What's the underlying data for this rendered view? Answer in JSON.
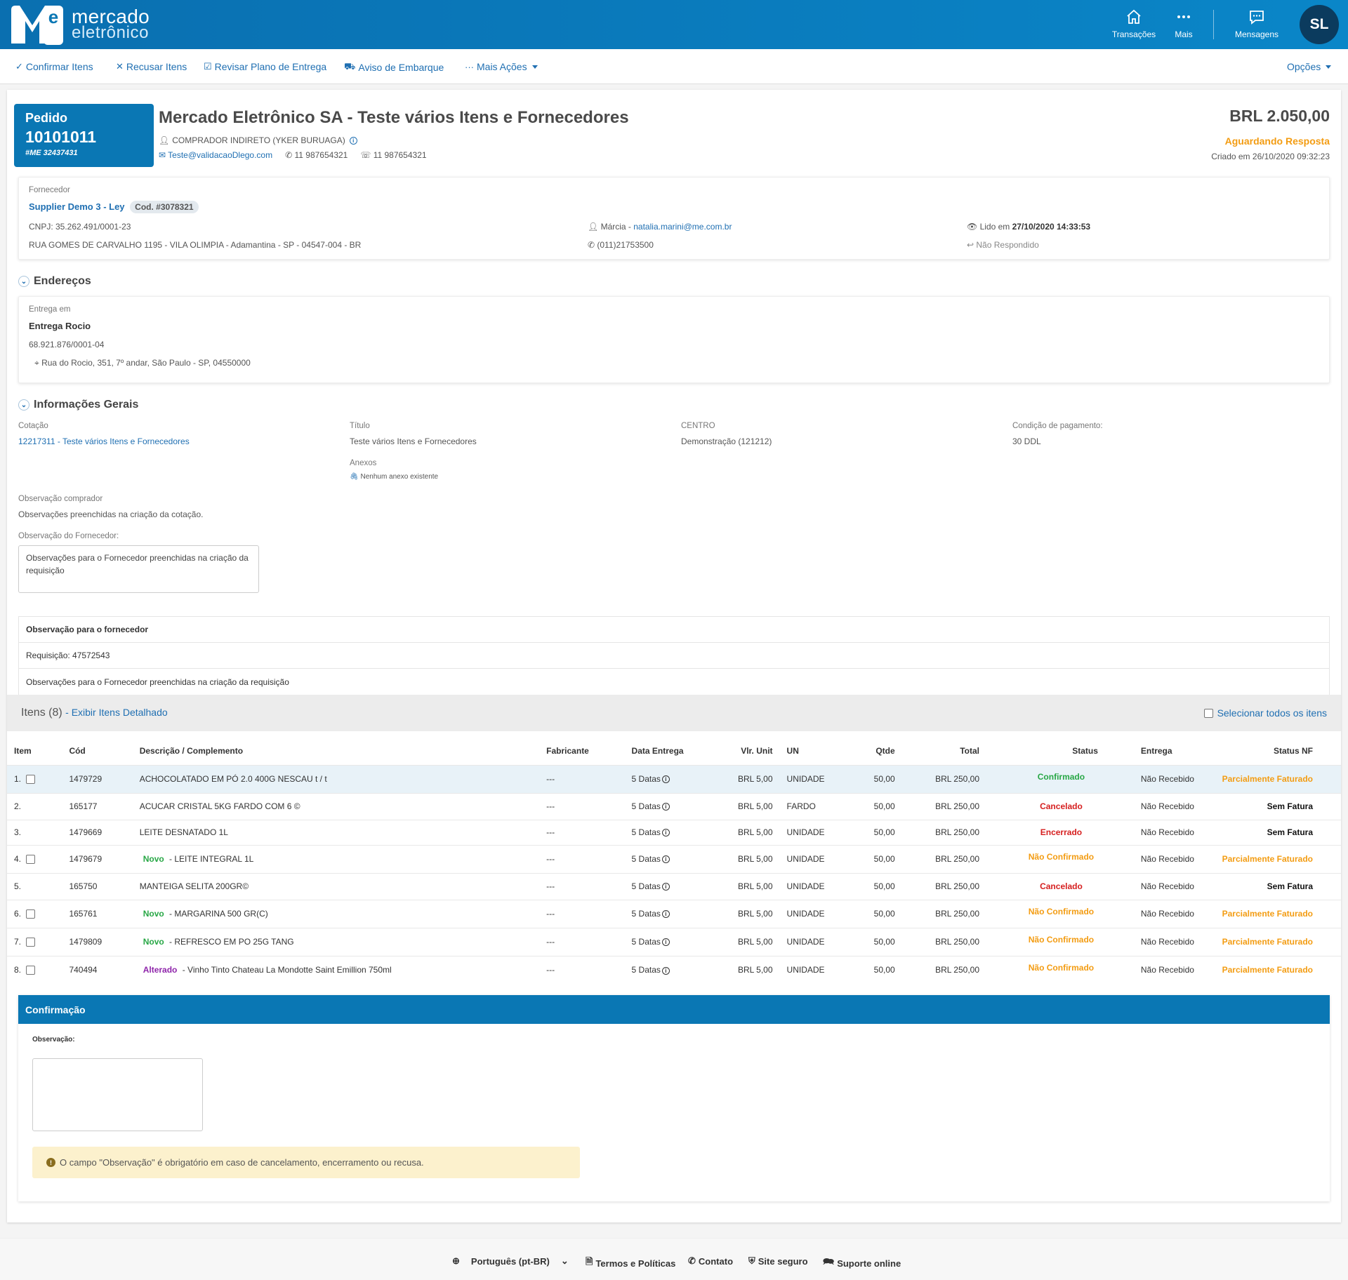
{
  "header": {
    "brand_line1": "mercado",
    "brand_line2": "eletrônico",
    "nav": [
      {
        "label": "Transações",
        "icon": "home-icon"
      },
      {
        "label": "Mais",
        "icon": "more-icon"
      },
      {
        "label": "Mensagens",
        "icon": "messages-icon"
      }
    ],
    "avatar_initials": "SL",
    "colors": {
      "brand": "#0a77b4",
      "avatar": "#0b3b5e"
    }
  },
  "toolbar": {
    "confirm": "Confirmar Itens",
    "refuse": "Recusar Itens",
    "revise": "Revisar Plano de Entrega",
    "shipping": "Aviso de Embarque",
    "more": "Mais Ações",
    "options": "Opções"
  },
  "order": {
    "label": "Pedido",
    "number": "10101011",
    "me_code": "#ME 32437431",
    "title": "Mercado Eletrônico SA - Teste vários Itens e Fornecedores",
    "buyer": "COMPRADOR INDIRETO (YKER BURUAGA)",
    "email": "Teste@validacaoDlego.com",
    "phone": "11 987654321",
    "fax": "11 987654321",
    "amount": "BRL 2.050,00",
    "status": "Aguardando Resposta",
    "created": "Criado em 26/10/2020 09:32:23"
  },
  "supplier": {
    "label": "Fornecedor",
    "name": "Supplier Demo 3 - Ley",
    "code": "Cod. #3078321",
    "cnpj": "CNPJ: 35.262.491/0001-23",
    "address": "RUA GOMES DE CARVALHO 1195 - VILA OLIMPIA - Adamantina - SP - 04547-004 - BR",
    "contact_name": "Márcia - ",
    "contact_email": "natalia.marini@me.com.br",
    "contact_phone": "(011)21753500",
    "read_prefix": "Lido em ",
    "read_date": "27/10/2020 14:33:53",
    "reply_status": "Não Respondido"
  },
  "addresses": {
    "heading": "Endereços",
    "label": "Entrega em",
    "name": "Entrega Rocio",
    "cnpj": "68.921.876/0001-04",
    "street": "Rua do Rocio, 351, 7º andar, São Paulo - SP, 04550000"
  },
  "general": {
    "heading": "Informações Gerais",
    "quote_label": "Cotação",
    "quote_value": "12217311 - Teste vários Itens e Fornecedores",
    "title_label": "Título",
    "title_value": "Teste vários Itens e Fornecedores",
    "center_label": "CENTRO",
    "center_value": "Demonstração (121212)",
    "payment_label": "Condição de pagamento:",
    "payment_value": "30 DDL",
    "attach_label": "Anexos",
    "attach_value": "Nenhum anexo existente",
    "buyer_obs_label": "Observação comprador",
    "buyer_obs_value": "Observações preenchidas na criação da cotação.",
    "supplier_obs_label": "Observação do Fornecedor:",
    "supplier_obs_value": "Observações para o Fornecedor preenchidas na criação da requisição"
  },
  "obs_table": {
    "header": "Observação para o fornecedor",
    "rows": [
      "Requisição: 47572543",
      "Observações para o Fornecedor preenchidas na criação da requisição"
    ]
  },
  "items_section": {
    "title": "Itens (8)",
    "detail_link": "- Exibir Itens Detalhado",
    "select_all": "Selecionar todos os itens",
    "columns": [
      "Item",
      "Cód",
      "Descrição / Complemento",
      "Fabricante",
      "Data Entrega",
      "Vlr. Unit",
      "UN",
      "Qtde",
      "Total",
      "Status",
      "Entrega",
      "Status NF"
    ],
    "rows": [
      {
        "n": "1.",
        "cb": true,
        "cod": "1479729",
        "tag": "",
        "desc": "ACHOCOLATADO EM PÓ 2.0 400G NESCAU t / t",
        "fab": "---",
        "data": "5 Datas",
        "vlr": "BRL 5,00",
        "un": "UNIDADE",
        "qtde": "50,00",
        "total": "BRL 250,00",
        "status": "Confirmado",
        "entrega": "Não Recebido",
        "nf": "Parcialmente Faturado"
      },
      {
        "n": "2.",
        "cb": false,
        "cod": "165177",
        "tag": "",
        "desc": "ACUCAR CRISTAL 5KG FARDO COM 6 ©",
        "fab": "---",
        "data": "5 Datas",
        "vlr": "BRL 5,00",
        "un": "FARDO",
        "qtde": "50,00",
        "total": "BRL 250,00",
        "status": "Cancelado",
        "entrega": "Não Recebido",
        "nf": "Sem Fatura"
      },
      {
        "n": "3.",
        "cb": false,
        "cod": "1479669",
        "tag": "",
        "desc": "LEITE DESNATADO 1L",
        "fab": "---",
        "data": "5 Datas",
        "vlr": "BRL 5,00",
        "un": "UNIDADE",
        "qtde": "50,00",
        "total": "BRL 250,00",
        "status": "Encerrado",
        "entrega": "Não Recebido",
        "nf": "Sem Fatura"
      },
      {
        "n": "4.",
        "cb": true,
        "cod": "1479679",
        "tag": "Novo",
        "desc": " - LEITE INTEGRAL 1L",
        "fab": "---",
        "data": "5 Datas",
        "vlr": "BRL 5,00",
        "un": "UNIDADE",
        "qtde": "50,00",
        "total": "BRL 250,00",
        "status": "Não Confirmado",
        "entrega": "Não Recebido",
        "nf": "Parcialmente Faturado"
      },
      {
        "n": "5.",
        "cb": false,
        "cod": "165750",
        "tag": "",
        "desc": "MANTEIGA SELITA 200GR©",
        "fab": "---",
        "data": "5 Datas",
        "vlr": "BRL 5,00",
        "un": "UNIDADE",
        "qtde": "50,00",
        "total": "BRL 250,00",
        "status": "Cancelado",
        "entrega": "Não Recebido",
        "nf": "Sem Fatura"
      },
      {
        "n": "6.",
        "cb": true,
        "cod": "165761",
        "tag": "Novo",
        "desc": " - MARGARINA 500 GR(C)",
        "fab": "---",
        "data": "5 Datas",
        "vlr": "BRL 5,00",
        "un": "UNIDADE",
        "qtde": "50,00",
        "total": "BRL 250,00",
        "status": "Não Confirmado",
        "entrega": "Não Recebido",
        "nf": "Parcialmente Faturado"
      },
      {
        "n": "7.",
        "cb": true,
        "cod": "1479809",
        "tag": "Novo",
        "desc": " - REFRESCO EM PO 25G TANG",
        "fab": "---",
        "data": "5 Datas",
        "vlr": "BRL 5,00",
        "un": "UNIDADE",
        "qtde": "50,00",
        "total": "BRL 250,00",
        "status": "Não Confirmado",
        "entrega": "Não Recebido",
        "nf": "Parcialmente Faturado"
      },
      {
        "n": "8.",
        "cb": true,
        "cod": "740494",
        "tag": "Alterado",
        "desc": " - Vinho Tinto Chateau La Mondotte Saint Emillion 750ml",
        "fab": "---",
        "data": "5 Datas",
        "vlr": "BRL 5,00",
        "un": "UNIDADE",
        "qtde": "50,00",
        "total": "BRL 250,00",
        "status": "Não Confirmado",
        "entrega": "Não Recebido",
        "nf": "Parcialmente Faturado"
      }
    ]
  },
  "confirmation": {
    "heading": "Confirmação",
    "obs_label": "Observação:",
    "warning": "O campo \"Observação\" é obrigatório em caso de cancelamento, encerramento ou recusa."
  },
  "footer": {
    "language": "Português (pt-BR)",
    "terms": "Termos e Políticas",
    "contact": "Contato",
    "secure": "Site seguro",
    "support": "Suporte online"
  }
}
